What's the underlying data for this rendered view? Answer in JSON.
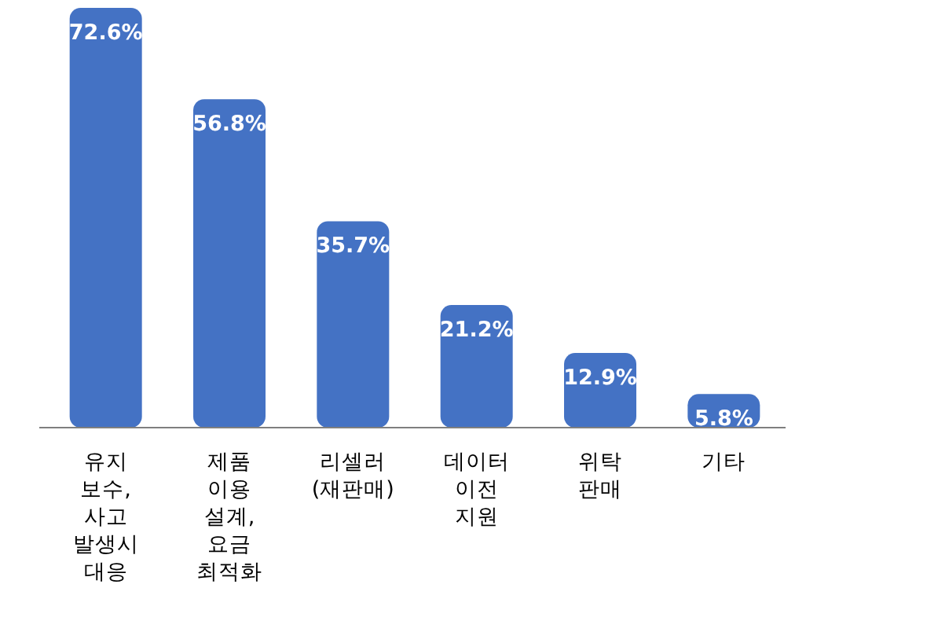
{
  "chart_data": {
    "type": "bar",
    "categories": [
      "유지 보수, 사고 발생시 대응",
      "제품 이용 설계, 요금 최적화",
      "리셀러 (재판매)",
      "데이터 이전 지원",
      "위탁 판매",
      "기타"
    ],
    "values": [
      72.6,
      56.8,
      35.7,
      21.2,
      12.9,
      5.8
    ],
    "value_labels": [
      "72.6%",
      "56.8%",
      "35.7%",
      "21.2%",
      "12.9%",
      "5.8%"
    ],
    "color": "#4472c4"
  }
}
